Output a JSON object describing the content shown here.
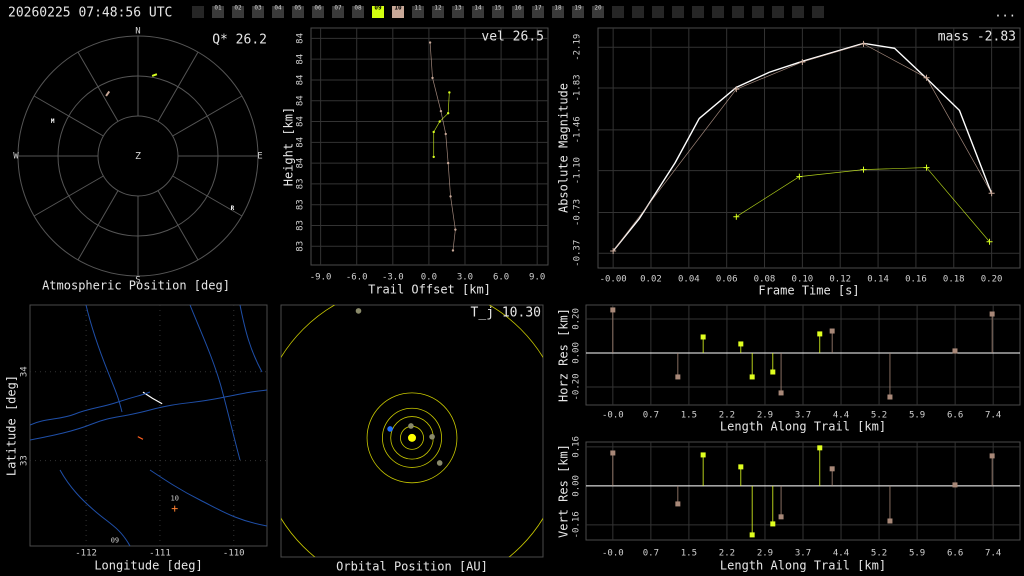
{
  "header": {
    "timestamp": "20260225 07:48:56 UTC",
    "menu": "...",
    "tabs": [
      {
        "label": "01"
      },
      {
        "label": "02"
      },
      {
        "label": "03"
      },
      {
        "label": "04"
      },
      {
        "label": "05"
      },
      {
        "label": "06"
      },
      {
        "label": "07"
      },
      {
        "label": "08"
      },
      {
        "label": "09",
        "color": "#d4ff10"
      },
      {
        "label": "10",
        "color": "#c8a898"
      },
      {
        "label": "11"
      },
      {
        "label": "12"
      },
      {
        "label": "13"
      },
      {
        "label": "14"
      },
      {
        "label": "15"
      },
      {
        "label": "16"
      },
      {
        "label": "17"
      },
      {
        "label": "18"
      },
      {
        "label": "19"
      },
      {
        "label": "20"
      }
    ]
  },
  "chart_data": [
    {
      "type": "polar",
      "title": "Atmospheric Position [deg]",
      "annotation": "Q* 26.2",
      "directions": [
        "N",
        "E",
        "S",
        "W",
        "Z"
      ],
      "points": [
        {
          "label": "M",
          "azimuth": 292,
          "zenith": 69
        },
        {
          "label": "R",
          "azimuth": 119,
          "zenith": 81
        }
      ],
      "traces": [
        {
          "color": "#d8ff20",
          "azimuth": [
            10,
            13
          ],
          "zenith": [
            61,
            63
          ]
        },
        {
          "color": "#c8a898",
          "azimuth": [
            332,
            336
          ],
          "zenith": [
            51,
            53
          ]
        }
      ]
    },
    {
      "type": "line",
      "xlabel": "Trail Offset [km]",
      "ylabel": "Height [km]",
      "annotation": "vel 26.5",
      "xlim": [
        -9.8,
        9.9
      ],
      "ylim": [
        83.31,
        84.45
      ],
      "grid": true,
      "xticks": [
        {
          "value": -9,
          "label": "-9.0"
        },
        {
          "value": -6,
          "label": "-6.0"
        },
        {
          "value": -3,
          "label": "-3.0"
        },
        {
          "value": 0,
          "label": "0.0"
        },
        {
          "value": 3,
          "label": "3.0"
        },
        {
          "value": 6,
          "label": "6.0"
        },
        {
          "value": 9,
          "label": "9.0"
        }
      ],
      "yticks": [
        {
          "value": 84.4,
          "label": "84"
        },
        {
          "value": 84.3,
          "label": "84"
        },
        {
          "value": 84.2,
          "label": "84"
        },
        {
          "value": 84.1,
          "label": "84"
        },
        {
          "value": 84.0,
          "label": "84"
        },
        {
          "value": 83.9,
          "label": "84"
        },
        {
          "value": 83.8,
          "label": "84"
        },
        {
          "value": 83.7,
          "label": "83"
        },
        {
          "value": 83.6,
          "label": "83"
        },
        {
          "value": 83.5,
          "label": "83"
        },
        {
          "value": 83.4,
          "label": "83"
        }
      ],
      "series": [
        {
          "color": "#c8a898",
          "marker": "dot",
          "x": [
            0.1,
            0.3,
            1.0,
            1.4,
            1.6,
            1.8,
            2.2,
            2.0
          ],
          "values": [
            84.38,
            84.21,
            84.05,
            83.94,
            83.8,
            83.64,
            83.48,
            83.38
          ]
        },
        {
          "color": "#d8ff20",
          "marker": "dot",
          "x": [
            1.7,
            1.6,
            0.9,
            0.4,
            0.4
          ],
          "values": [
            84.14,
            84.04,
            84.0,
            83.95,
            83.83
          ]
        }
      ]
    },
    {
      "type": "line",
      "xlabel": "Frame Time [s]",
      "ylabel": "Absolute Magnitude",
      "annotation": "mass -2.83",
      "xlim": [
        -0.008,
        0.215
      ],
      "ylim": [
        -0.24,
        -2.36
      ],
      "grid": true,
      "xticks": [
        {
          "value": 0,
          "label": "-0.00"
        },
        0.02,
        0.04,
        0.06,
        0.08,
        {
          "value": 0.1,
          "label": "0.10"
        },
        0.12,
        0.14,
        0.16,
        0.18,
        {
          "value": 0.2,
          "label": "0.20"
        }
      ],
      "yticks": [
        -2.19,
        -1.83,
        -1.46,
        {
          "value": -1.1,
          "label": "-1.10"
        },
        -0.73,
        -0.37
      ],
      "series": [
        {
          "color": "#ffffff",
          "x": [
            0,
            0.0138,
            0.0328,
            0.0455,
            0.0651,
            0.0825,
            0.1,
            0.1323,
            0.1487,
            0.1656,
            0.183,
            0.2
          ],
          "values": [
            -0.39,
            -0.675,
            -1.171,
            -1.561,
            -1.836,
            -1.969,
            -2.066,
            -2.225,
            -2.181,
            -1.915,
            -1.632,
            -0.897
          ]
        },
        {
          "color": "#c8a898",
          "marker": "plus",
          "x": [
            0,
            0.0651,
            0.1,
            0.1323,
            0.1656,
            0.2
          ],
          "values": [
            -0.39,
            -1.82,
            -2.06,
            -2.22,
            -1.92,
            -0.9
          ]
        },
        {
          "color": "#d8ff20",
          "marker": "plus",
          "x": [
            0.0651,
            0.0984,
            0.1323,
            0.1656,
            0.1989
          ],
          "values": [
            -0.693,
            -1.047,
            -1.109,
            -1.127,
            -0.472
          ]
        }
      ]
    },
    {
      "type": "map",
      "xlabel": "Longitude [deg]",
      "ylabel": "Latitude [deg]",
      "xlim": [
        -112.76,
        -109.55
      ],
      "ylim": [
        32.04,
        34.75
      ],
      "grid": true,
      "xticks": [
        -112,
        -111,
        -110
      ],
      "yticks": [
        33,
        34
      ],
      "stations": [
        {
          "label": "10",
          "lon": -110.8,
          "lat": 32.46,
          "color": "#ff8030"
        },
        {
          "label": "09",
          "lon": -111.61,
          "lat": 31.99,
          "color": "#d8ff20"
        }
      ],
      "trails": [
        {
          "color": "#ffffff",
          "lon": [
            -111.23,
            -111.1,
            -110.97
          ],
          "lat": [
            33.77,
            33.7,
            33.64
          ]
        },
        {
          "color": "#ff6020",
          "lon": [
            -111.3,
            -111.23
          ],
          "lat": [
            33.27,
            33.24
          ]
        }
      ]
    },
    {
      "type": "orbit",
      "title": "Orbital Position [AU]",
      "annotation": "T_j 10.30",
      "xlim": [
        -4.43,
        4.43
      ],
      "ylim": [
        -4.0,
        4.46
      ],
      "orbits": [
        0.39,
        0.72,
        1.0,
        1.52,
        5.2
      ],
      "orbit_color": "#c8c800",
      "sun_color": "#ffff00",
      "planets": [
        {
          "r": 0.4,
          "angle": 95,
          "color": "#8a8a6a"
        },
        {
          "r": 0.68,
          "angle": 3,
          "color": "#8a8a6a"
        },
        {
          "r": 0.8,
          "angle": 158,
          "color": "#2070ff"
        },
        {
          "r": 1.26,
          "angle": 318,
          "color": "#8a8a6a"
        },
        {
          "r": 4.63,
          "angle": 113,
          "color": "#8a8a6a"
        }
      ]
    },
    {
      "type": "stem",
      "xlabel": "Length Along Trail [km]",
      "ylabel": "Horz Res [km]",
      "xlim": [
        -0.52,
        7.89
      ],
      "ylim": [
        -0.306,
        0.282
      ],
      "grid": true,
      "xticks": [
        {
          "value": 0,
          "label": "-0.0"
        },
        {
          "value": 0.737,
          "label": "0.7"
        },
        {
          "value": 1.474,
          "label": "1.5"
        },
        {
          "value": 2.211,
          "label": "2.2"
        },
        {
          "value": 2.948,
          "label": "2.9"
        },
        {
          "value": 3.685,
          "label": "3.7"
        },
        {
          "value": 4.422,
          "label": "4.4"
        },
        {
          "value": 5.159,
          "label": "5.2"
        },
        {
          "value": 5.896,
          "label": "5.9"
        },
        {
          "value": 6.633,
          "label": "6.6"
        },
        {
          "value": 7.37,
          "label": "7.4"
        }
      ],
      "yticks": [
        {
          "value": 0.2,
          "label": "0.20"
        },
        {
          "value": 0,
          "label": "0.00"
        },
        {
          "value": -0.2,
          "label": "-0.20"
        }
      ],
      "series": [
        {
          "color": "#a88878",
          "x": [
            0,
            1.26,
            3.26,
            4.25,
            5.37,
            6.63,
            7.35
          ],
          "values": [
            0.253,
            -0.141,
            -0.235,
            0.129,
            -0.259,
            0.012,
            0.229
          ]
        },
        {
          "color": "#e0ff20",
          "x": [
            1.75,
            2.48,
            2.7,
            3.1,
            4.01
          ],
          "values": [
            0.094,
            0.053,
            -0.141,
            -0.112,
            0.112
          ]
        }
      ]
    },
    {
      "type": "stem",
      "xlabel": "Length Along Trail [km]",
      "ylabel": "Vert Res [km]",
      "xlim": [
        -0.52,
        7.89
      ],
      "ylim": [
        -0.222,
        0.18
      ],
      "grid": true,
      "xticks": [
        {
          "value": 0,
          "label": "-0.0"
        },
        {
          "value": 0.737,
          "label": "0.7"
        },
        {
          "value": 1.474,
          "label": "1.5"
        },
        {
          "value": 2.211,
          "label": "2.2"
        },
        {
          "value": 2.948,
          "label": "2.9"
        },
        {
          "value": 3.685,
          "label": "3.7"
        },
        {
          "value": 4.422,
          "label": "4.4"
        },
        {
          "value": 5.159,
          "label": "5.2"
        },
        {
          "value": 5.896,
          "label": "5.9"
        },
        {
          "value": 6.633,
          "label": "6.6"
        },
        {
          "value": 7.37,
          "label": "7.4"
        }
      ],
      "yticks": [
        0.16,
        {
          "value": 0,
          "label": "0.00"
        },
        -0.16
      ],
      "series": [
        {
          "color": "#a88878",
          "x": [
            0,
            1.26,
            3.26,
            4.25,
            5.37,
            6.63,
            7.35
          ],
          "values": [
            0.135,
            -0.074,
            -0.127,
            0.07,
            -0.144,
            0.004,
            0.123
          ]
        },
        {
          "color": "#e0ff20",
          "x": [
            1.75,
            2.48,
            2.7,
            3.1,
            4.01
          ],
          "values": [
            0.127,
            0.078,
            -0.201,
            -0.156,
            0.156
          ]
        }
      ]
    }
  ]
}
